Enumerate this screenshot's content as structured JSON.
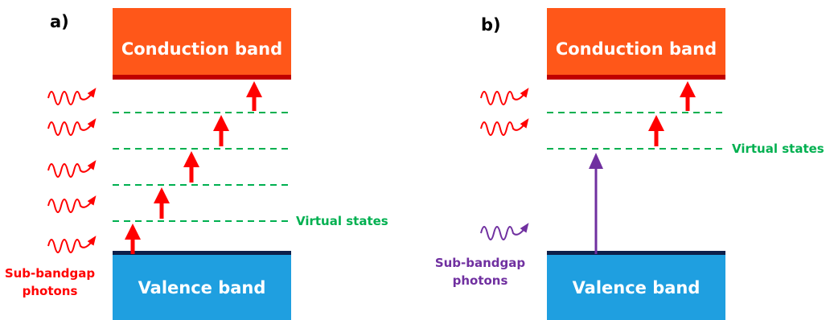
{
  "panels": [
    {
      "label": "a)",
      "conduction_band": "Conduction band",
      "valence_band": "Valence band",
      "virtual_states_label": "Virtual states",
      "photons_label_line1": "Sub-bandgap",
      "photons_label_line2": "photons",
      "photon_color": "#ff0000",
      "photon_count": 5,
      "virtual_state_count": 4
    },
    {
      "label": "b)",
      "conduction_band": "Conduction band",
      "valence_band": "Valence band",
      "virtual_states_label": "Virtual states",
      "photons_label_line1": "Sub-bandgap",
      "photons_label_line2": "photons",
      "photon_color": "#7030a0",
      "second_photon_color": "#ff0000",
      "photon_count": 3,
      "virtual_state_count": 2
    }
  ],
  "colors": {
    "conduction_band": "#ff5719",
    "conduction_edge": "#c00000",
    "valence_band": "#1f9fe0",
    "valence_edge": "#0d1f4a",
    "virtual_state": "#00b050",
    "arrow_red": "#ff0000",
    "arrow_purple": "#7030a0"
  }
}
